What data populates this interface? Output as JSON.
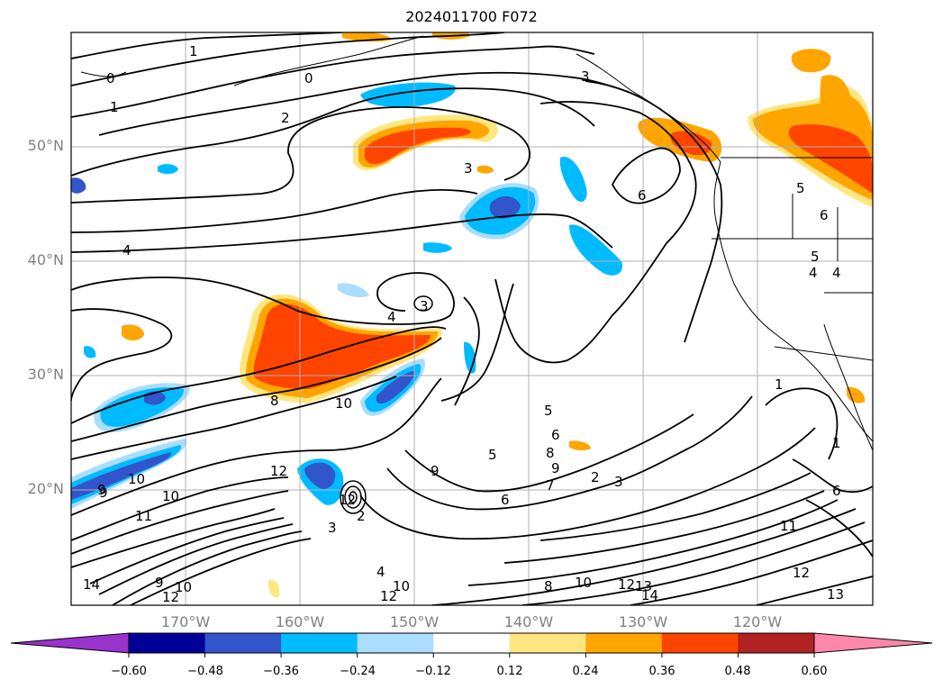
{
  "title": "2024011700 F072",
  "lat_labels": [
    "50°N",
    "40°N",
    "30°N",
    "20°N"
  ],
  "lon_labels": [
    "170°W",
    "160°W",
    "150°W",
    "140°W",
    "130°W",
    "120°W"
  ],
  "colorbar": {
    "labels": [
      "−0.60",
      "−0.48",
      "−0.36",
      "−0.24",
      "−0.12",
      "0.12",
      "0.24",
      "0.36",
      "0.48",
      "0.60"
    ],
    "colors": [
      "#9933cc",
      "#000099",
      "#3355cc",
      "#00bbff",
      "#aaddff",
      "#ffffff",
      "#ffe680",
      "#ffa500",
      "#ff4400",
      "#b22222",
      "#ff88aa"
    ]
  },
  "contour_labels": [
    "1",
    "0",
    "1",
    "2",
    "3",
    "3",
    "6",
    "4",
    "3",
    "4",
    "8",
    "10",
    "5",
    "6",
    "5",
    "8",
    "9",
    "2",
    "3",
    "7",
    "6",
    "12",
    "10",
    "9",
    "10",
    "11",
    "9",
    "3",
    "12",
    "14",
    "9",
    "10",
    "12",
    "4",
    "10",
    "12",
    "8",
    "10",
    "12",
    "13",
    "14",
    "11",
    "12",
    "13",
    "6",
    "1",
    "1",
    "5",
    "4",
    "4",
    "5",
    "0",
    "9",
    "2",
    "6"
  ],
  "fill_colors": {
    "orange": "#ffa500",
    "red_orange": "#ff4400",
    "yellow": "#ffe680",
    "cyan": "#00bbff",
    "light_blue": "#aaddff",
    "blue": "#3355cc"
  }
}
